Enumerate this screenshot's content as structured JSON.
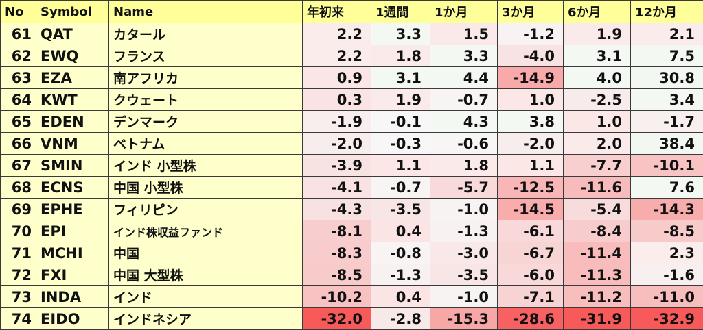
{
  "chart_data": {
    "type": "table",
    "columns": [
      "No",
      "Symbol",
      "Name",
      "年初来",
      "1週間",
      "1か月",
      "3か月",
      "6か月",
      "12か月"
    ],
    "rows": [
      {
        "no": "61",
        "symbol": "QAT",
        "name": "カタール",
        "values": [
          "2.2",
          "3.3",
          "1.5",
          "-1.2",
          "1.9",
          "2.1"
        ]
      },
      {
        "no": "62",
        "symbol": "EWQ",
        "name": "フランス",
        "values": [
          "2.2",
          "1.8",
          "3.3",
          "-4.0",
          "3.1",
          "7.5"
        ]
      },
      {
        "no": "63",
        "symbol": "EZA",
        "name": "南アフリカ",
        "values": [
          "0.9",
          "3.1",
          "4.4",
          "-14.9",
          "4.0",
          "30.8"
        ]
      },
      {
        "no": "64",
        "symbol": "KWT",
        "name": "クウェート",
        "values": [
          "0.3",
          "1.9",
          "-0.7",
          "1.0",
          "-2.5",
          "3.4"
        ]
      },
      {
        "no": "65",
        "symbol": "EDEN",
        "name": "デンマーク",
        "values": [
          "-1.9",
          "-0.1",
          "4.3",
          "3.8",
          "1.0",
          "-1.7"
        ]
      },
      {
        "no": "66",
        "symbol": "VNM",
        "name": "ベトナム",
        "values": [
          "-2.0",
          "-0.3",
          "-0.6",
          "-2.0",
          "2.0",
          "38.4"
        ]
      },
      {
        "no": "67",
        "symbol": "SMIN",
        "name": "インド 小型株",
        "values": [
          "-3.9",
          "1.1",
          "1.8",
          "1.1",
          "-7.7",
          "-10.1"
        ]
      },
      {
        "no": "68",
        "symbol": "ECNS",
        "name": "中国 小型株",
        "values": [
          "-4.1",
          "-0.7",
          "-5.7",
          "-12.5",
          "-11.6",
          "7.6"
        ]
      },
      {
        "no": "69",
        "symbol": "EPHE",
        "name": "フィリピン",
        "values": [
          "-4.3",
          "-3.5",
          "-1.0",
          "-14.5",
          "-5.4",
          "-14.3"
        ]
      },
      {
        "no": "70",
        "symbol": "EPI",
        "name": "インド株収益ファンド",
        "values": [
          "-8.1",
          "0.4",
          "-1.3",
          "-6.1",
          "-8.4",
          "-8.5"
        ]
      },
      {
        "no": "71",
        "symbol": "MCHI",
        "name": "中国",
        "values": [
          "-8.3",
          "-0.8",
          "-3.0",
          "-6.7",
          "-11.4",
          "2.3"
        ]
      },
      {
        "no": "72",
        "symbol": "FXI",
        "name": "中国 大型株",
        "values": [
          "-8.5",
          "-1.3",
          "-3.5",
          "-6.0",
          "-11.3",
          "-1.6"
        ]
      },
      {
        "no": "73",
        "symbol": "INDA",
        "name": "インド",
        "values": [
          "-10.2",
          "0.4",
          "-1.0",
          "-7.1",
          "-11.2",
          "-11.0"
        ]
      },
      {
        "no": "74",
        "symbol": "EIDO",
        "name": "インドネシア",
        "values": [
          "-32.0",
          "-2.8",
          "-15.3",
          "-28.6",
          "-31.9",
          "-32.9"
        ]
      }
    ]
  }
}
